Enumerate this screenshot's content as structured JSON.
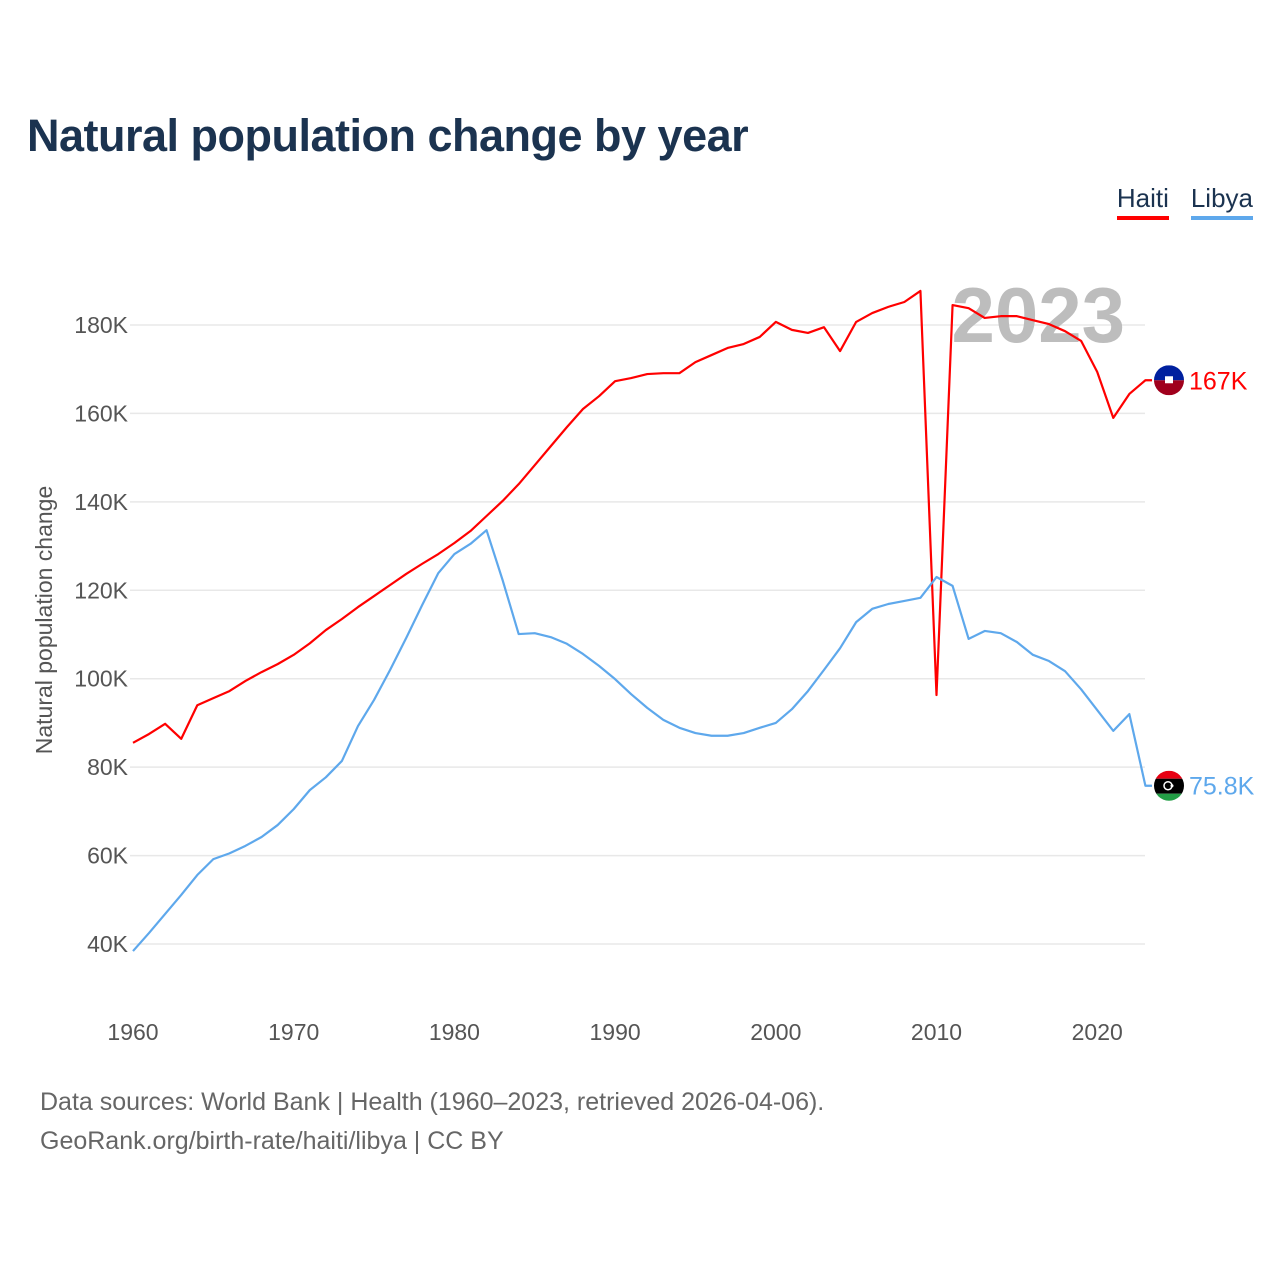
{
  "title": "Natural population change by year",
  "footer": {
    "line1": "Data sources: World Bank | Health (1960–2023, retrieved 2026-04-06).",
    "line2": "GeoRank.org/birth-rate/haiti/libya | CC BY"
  },
  "chart_data": {
    "type": "line",
    "title": "Natural population change by year",
    "xlabel": "",
    "ylabel": "Natural population change",
    "year_watermark": "2023",
    "xlim": [
      1960,
      2023
    ],
    "ylim": [
      30000,
      190000
    ],
    "xticks": [
      1960,
      1970,
      1980,
      1990,
      2000,
      2010,
      2020
    ],
    "yticks": [
      40000,
      60000,
      80000,
      100000,
      120000,
      140000,
      160000,
      180000
    ],
    "ytick_labels": [
      "40K",
      "60K",
      "80K",
      "100K",
      "120K",
      "140K",
      "160K",
      "180K"
    ],
    "grid": true,
    "legend": "top-right",
    "x_start": 1960,
    "series": [
      {
        "name": "Haiti",
        "color": "#ff0000",
        "end_label": "167K",
        "flag": "haiti-flag",
        "values": [
          85.5,
          87.5,
          89.8,
          86.4,
          94,
          95.6,
          97.2,
          99.5,
          101.5,
          103.3,
          105.4,
          108,
          111,
          113.5,
          116.2,
          118.7,
          121.2,
          123.7,
          126,
          128.2,
          130.7,
          133.4,
          136.8,
          140.2,
          144,
          148.3,
          152.6,
          156.9,
          161,
          163.9,
          167.3,
          168,
          168.9,
          169.1,
          169.1,
          171.6,
          173.2,
          174.8,
          175.7,
          177.3,
          180.7,
          178.9,
          178.2,
          179.5,
          174.1,
          180.7,
          182.7,
          184.1,
          185.2,
          187.7,
          96.3,
          184.5,
          183.8,
          181.6,
          182,
          182,
          181.1,
          180.2,
          178.6,
          176.4,
          169.4,
          159,
          164.4,
          167.5
        ]
      },
      {
        "name": "Libya",
        "color": "#5ea8ec",
        "end_label": "75.8K",
        "flag": "libya-flag",
        "values": [
          38.4,
          42.5,
          46.8,
          51.1,
          55.6,
          59.2,
          60.5,
          62.2,
          64.2,
          66.9,
          70.5,
          74.8,
          77.7,
          81.4,
          89.3,
          95.2,
          102,
          109.2,
          116.7,
          123.9,
          128.2,
          130.5,
          133.6,
          122.3,
          110.1,
          110.3,
          109.4,
          107.9,
          105.6,
          102.9,
          99.9,
          96.5,
          93.4,
          90.7,
          88.9,
          87.7,
          87.1,
          87.1,
          87.7,
          88.9,
          90,
          93.1,
          97.2,
          102,
          106.9,
          112.8,
          115.8,
          116.9,
          117.6,
          118.3,
          123,
          121,
          109,
          110.8,
          110.3,
          108.3,
          105.4,
          104,
          101.7,
          97.6,
          92.9,
          88.2,
          92,
          75.8
        ]
      }
    ],
    "value_unit": "thousands"
  }
}
